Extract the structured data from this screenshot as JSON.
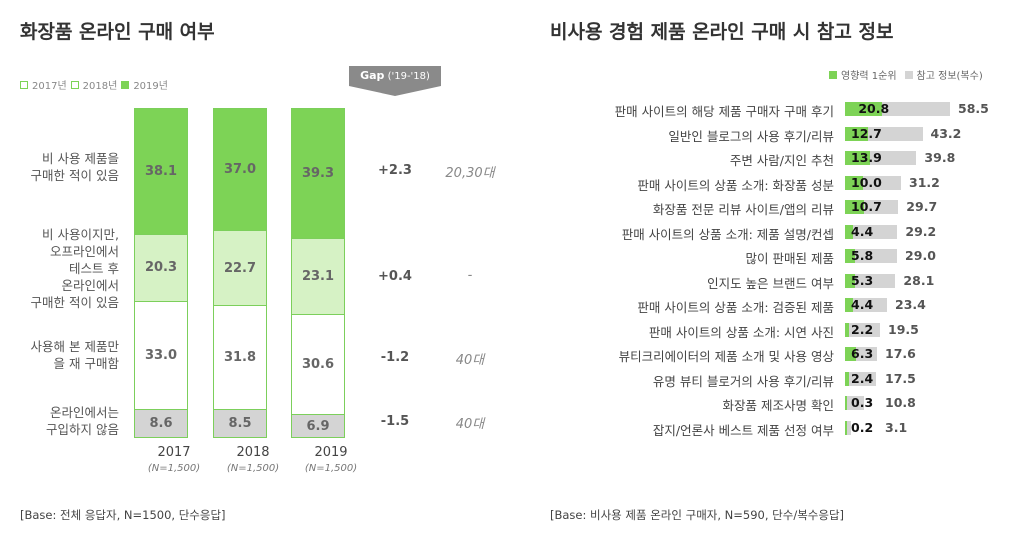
{
  "chart_data": [
    {
      "type": "bar",
      "title": "화장품 온라인 구매 여부",
      "legend": [
        "2017년",
        "2018년",
        "2019년"
      ],
      "categories": [
        "2017",
        "2018",
        "2019"
      ],
      "n_labels": [
        "(N=1,500)",
        "(N=1,500)",
        "(N=1,500)"
      ],
      "series": [
        {
          "name": "비 사용 제품을\n구매한 적이 있음",
          "values": [
            38.1,
            37.0,
            39.3
          ],
          "color": "#7dd356",
          "gap": "+2.3",
          "note": "20,30대"
        },
        {
          "name": "비 사용이지만,\n오프라인에서\n테스트 후\n온라인에서\n구매한 적이 있음",
          "values": [
            20.3,
            22.7,
            23.1
          ],
          "color": "#d6f2c5",
          "gap": "+0.4",
          "note": "-"
        },
        {
          "name": "사용해 본 제품만\n을 재 구매함",
          "values": [
            33.0,
            31.8,
            30.6
          ],
          "color": "#ffffff",
          "gap": "-1.2",
          "note": "40대"
        },
        {
          "name": "온라인에서는\n구입하지 않음",
          "values": [
            8.6,
            8.5,
            6.9
          ],
          "color": "#d4d4d4",
          "gap": "-1.5",
          "note": "40대"
        }
      ],
      "gap_header": {
        "bold": "Gap",
        "rest": " ('19-'18)"
      },
      "base": "[Base: 전체 응답자, N=1500, 단수응답]"
    },
    {
      "type": "bar",
      "title": "비사용 경험 제품 온라인 구매 시 참고 정보",
      "legend": [
        "영향력 1순위",
        "참고 정보(복수)"
      ],
      "colors": {
        "rank1": "#7dd356",
        "multi": "#d4d4d4"
      },
      "xlim": [
        0,
        60
      ],
      "categories": [
        "판매 사이트의 해당 제품 구매자 구매 후기",
        "일반인 블로그의 사용 후기/리뷰",
        "주변 사람/지인 추천",
        "판매 사이트의 상품 소개: 화장품 성분",
        "화장품 전문 리뷰 사이트/앱의 리뷰",
        "판매 사이트의 상품 소개: 제품 설명/컨셉",
        "많이 판매된 제품",
        "인지도 높은 브랜드 여부",
        "판매 사이트의 상품 소개: 검증된 제품",
        "판매 사이트의 상품 소개: 시연 사진",
        "뷰티크리에이터의 제품 소개 및 사용 영상",
        "유명 뷰티 블로거의 사용 후기/리뷰",
        "화장품 제조사명 확인",
        "잡지/언론사 베스트 제품 선정 여부"
      ],
      "rank1": [
        20.8,
        12.7,
        13.9,
        10.0,
        10.7,
        4.4,
        5.8,
        5.3,
        4.4,
        2.2,
        6.3,
        2.4,
        0.3,
        0.2
      ],
      "multi": [
        58.5,
        43.2,
        39.8,
        31.2,
        29.7,
        29.2,
        29.0,
        28.1,
        23.4,
        19.5,
        17.6,
        17.5,
        10.8,
        3.1
      ],
      "base": "[Base: 비사용 제품 온라인 구매자, N=590, 단수/복수응답]"
    }
  ]
}
